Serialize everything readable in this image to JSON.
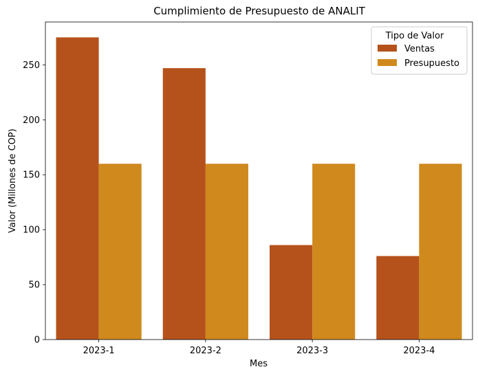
{
  "chart_data": {
    "type": "bar",
    "title": "Cumplimiento de Presupuesto de ANALIT",
    "xlabel": "Mes",
    "ylabel": "Valor (Millones de COP)",
    "categories": [
      "2023-1",
      "2023-2",
      "2023-3",
      "2023-4"
    ],
    "series": [
      {
        "name": "Ventas",
        "values": [
          275,
          247,
          86,
          76
        ],
        "color": "#b5521b"
      },
      {
        "name": "Presupuesto",
        "values": [
          160,
          160,
          160,
          160
        ],
        "color": "#cf891d"
      }
    ],
    "ylim": [
      0,
      289
    ],
    "yticks": [
      0,
      50,
      100,
      150,
      200,
      250
    ],
    "grid": false,
    "legend": {
      "title": "Tipo de Valor",
      "placement": "top-right"
    }
  }
}
